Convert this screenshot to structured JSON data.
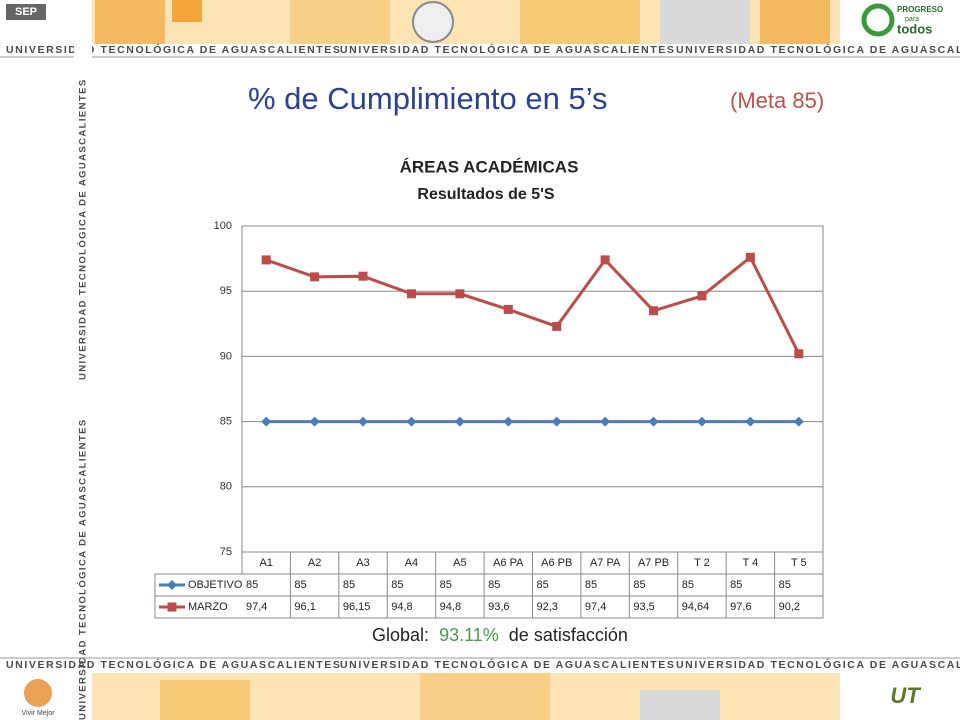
{
  "slide": {
    "title": "% de Cumplimiento en 5’s",
    "meta": "(Meta 85)",
    "global_label": "Global:",
    "global_value": "93.11%",
    "global_suffix": "de satisfacción",
    "banner": "UNIVERSIDAD TECNOLÓGICA DE AGUASCALIENTES",
    "logo_sep": "SEP",
    "logo_progreso": "PROGRESO",
    "logo_para": "para",
    "logo_todos": "todos",
    "logo_vivir": "Vivir Mejor"
  },
  "chart_data": {
    "type": "line",
    "title": "ÁREAS ACADÉMICAS",
    "subtitle": "Resultados de 5'S",
    "categories": [
      "A1",
      "A2",
      "A3",
      "A4",
      "A5",
      "A6 PA",
      "A6 PB",
      "A7 PA",
      "A7 PB",
      "T 2",
      "T 4",
      "T 5"
    ],
    "series": [
      {
        "name": "OBJETIVO",
        "color": "#4a7ebb",
        "marker": "diamond",
        "values": [
          85,
          85,
          85,
          85,
          85,
          85,
          85,
          85,
          85,
          85,
          85,
          85
        ]
      },
      {
        "name": "MARZO",
        "color": "#be4b48",
        "marker": "square",
        "values": [
          97.4,
          96.1,
          96.15,
          94.8,
          94.8,
          93.6,
          92.3,
          97.4,
          93.5,
          94.64,
          97.6,
          90.2
        ],
        "value_labels": [
          "97,4",
          "96,1",
          "96,15",
          "94,8",
          "94,8",
          "93,6",
          "92,3",
          "97,4",
          "93,5",
          "94,64",
          "97,6",
          "90,2"
        ]
      }
    ],
    "ylim": [
      75,
      100
    ],
    "yticks": [
      75,
      80,
      85,
      90,
      95,
      100
    ],
    "grid": true
  }
}
